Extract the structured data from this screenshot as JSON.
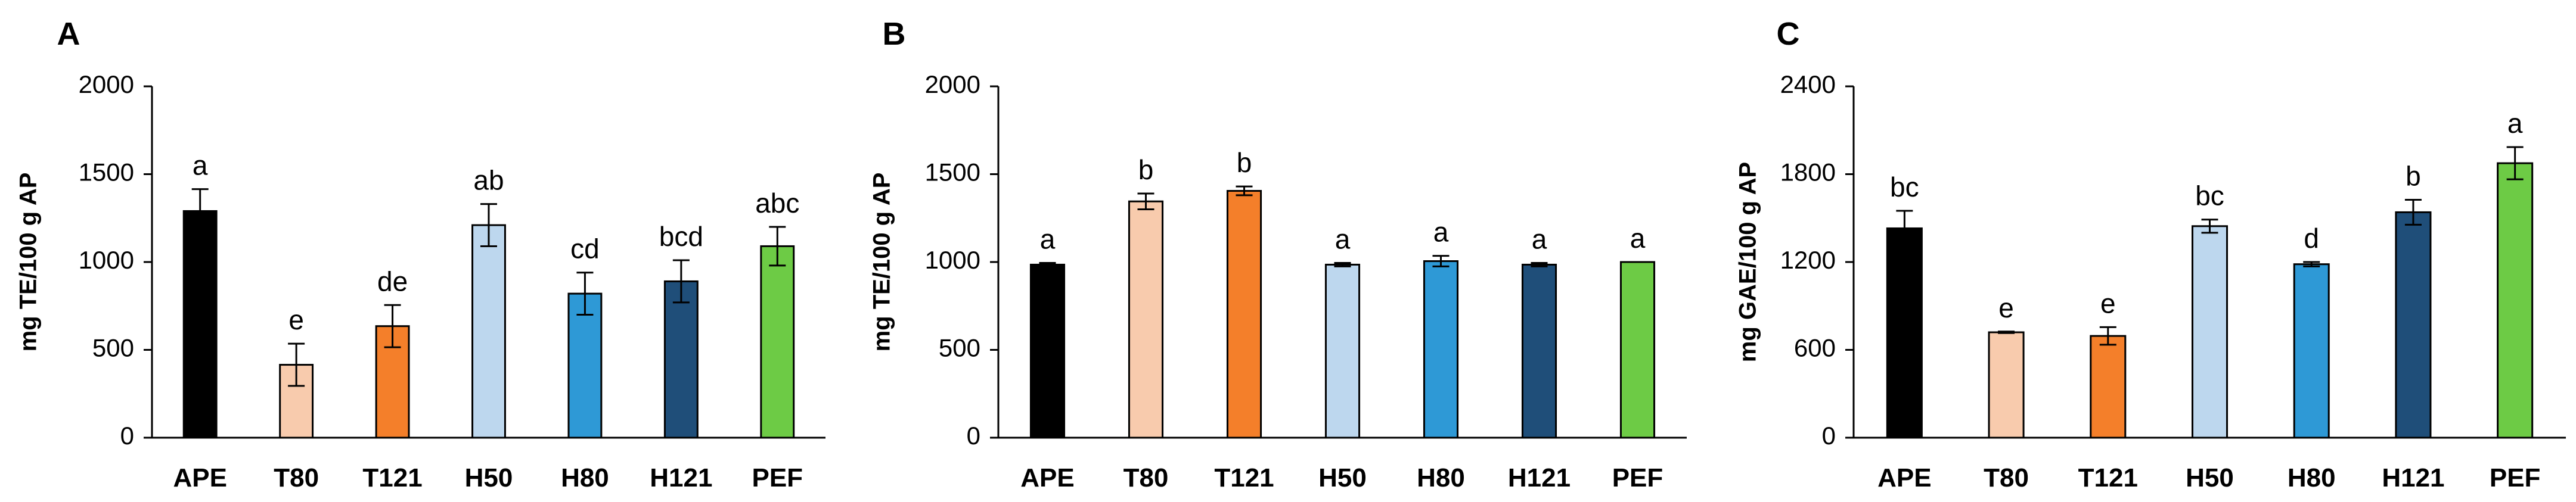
{
  "chart_data": [
    {
      "type": "bar",
      "panel": "A",
      "ylabel": "mg TE/100 g AP",
      "ylim": [
        0,
        2000
      ],
      "yticks": [
        0,
        500,
        1000,
        1500,
        2000
      ],
      "categories": [
        "APE",
        "T80",
        "T121",
        "H50",
        "H80",
        "H121",
        "PEF"
      ],
      "values": [
        1290,
        415,
        635,
        1210,
        820,
        890,
        1090
      ],
      "errors": [
        125,
        120,
        120,
        120,
        120,
        120,
        110
      ],
      "letters": [
        "a",
        "e",
        "de",
        "ab",
        "cd",
        "bcd",
        "abc"
      ],
      "colors": [
        "#000000",
        "#F8CBAD",
        "#F47F2A",
        "#BDD7EE",
        "#2E99D6",
        "#1F4E79",
        "#6DCB45"
      ],
      "grid": false,
      "legend": "none"
    },
    {
      "type": "bar",
      "panel": "B",
      "ylabel": "mg TE/100 g AP",
      "ylim": [
        0,
        2000
      ],
      "yticks": [
        0,
        500,
        1000,
        1500,
        2000
      ],
      "categories": [
        "APE",
        "T80",
        "T121",
        "H50",
        "H80",
        "H121",
        "PEF"
      ],
      "values": [
        985,
        1345,
        1405,
        985,
        1005,
        985,
        1000
      ],
      "errors": [
        10,
        45,
        25,
        10,
        30,
        10,
        0
      ],
      "letters": [
        "a",
        "b",
        "b",
        "a",
        "a",
        "a",
        "a"
      ],
      "colors": [
        "#000000",
        "#F8CBAD",
        "#F47F2A",
        "#BDD7EE",
        "#2E99D6",
        "#1F4E79",
        "#6DCB45"
      ],
      "grid": false,
      "legend": "none"
    },
    {
      "type": "bar",
      "panel": "C",
      "ylabel": "mg GAE/100 g AP",
      "ylim": [
        0,
        2400
      ],
      "yticks": [
        0,
        600,
        1200,
        1800,
        2400
      ],
      "categories": [
        "APE",
        "T80",
        "T121",
        "H50",
        "H80",
        "H121",
        "PEF"
      ],
      "values": [
        1430,
        720,
        695,
        1445,
        1185,
        1540,
        1875
      ],
      "errors": [
        120,
        5,
        60,
        45,
        15,
        85,
        110
      ],
      "letters": [
        "bc",
        "e",
        "e",
        "bc",
        "d",
        "b",
        "a"
      ],
      "colors": [
        "#000000",
        "#F8CBAD",
        "#F47F2A",
        "#BDD7EE",
        "#2E99D6",
        "#1F4E79",
        "#6DCB45"
      ],
      "grid": false,
      "legend": "none"
    }
  ]
}
